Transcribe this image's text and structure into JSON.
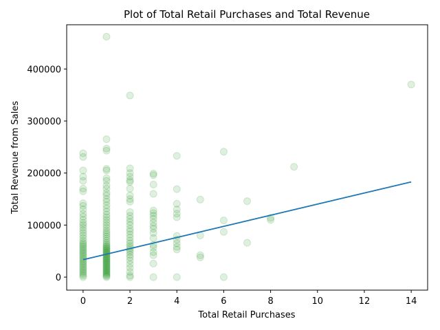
{
  "chart_data": {
    "type": "scatter",
    "title": "Plot of Total Retail Purchases and Total Revenue",
    "xlabel": "Total Retail Purchases",
    "ylabel": "Total Revenue from Sales",
    "xlim": [
      -0.7,
      14.7
    ],
    "ylim": [
      -25000,
      485000
    ],
    "x_ticks": [
      0,
      2,
      4,
      6,
      8,
      10,
      12,
      14
    ],
    "y_ticks": [
      0,
      100000,
      200000,
      300000,
      400000
    ],
    "grid": false,
    "legend": "none",
    "point_color": "#008000",
    "point_alpha": 0.12,
    "line_color": "#1f77b4",
    "points": [
      [
        0,
        0
      ],
      [
        0,
        3000
      ],
      [
        0,
        6000
      ],
      [
        0,
        9000
      ],
      [
        0,
        12000
      ],
      [
        0,
        15000
      ],
      [
        0,
        18000
      ],
      [
        0,
        21000
      ],
      [
        0,
        24000
      ],
      [
        0,
        27000
      ],
      [
        0,
        30000
      ],
      [
        0,
        33000
      ],
      [
        0,
        36000
      ],
      [
        0,
        39000
      ],
      [
        0,
        42000
      ],
      [
        0,
        45000
      ],
      [
        0,
        48000
      ],
      [
        0,
        51000
      ],
      [
        0,
        54000
      ],
      [
        0,
        57000
      ],
      [
        0,
        60000
      ],
      [
        0,
        63000
      ],
      [
        0,
        66000
      ],
      [
        0,
        70000
      ],
      [
        0,
        75000
      ],
      [
        0,
        80000
      ],
      [
        0,
        85000
      ],
      [
        0,
        90000
      ],
      [
        0,
        95000
      ],
      [
        0,
        100000
      ],
      [
        0,
        104000
      ],
      [
        0,
        110000
      ],
      [
        0,
        116000
      ],
      [
        0,
        122000
      ],
      [
        0,
        130000
      ],
      [
        0,
        137000
      ],
      [
        0,
        142000
      ],
      [
        0,
        165000
      ],
      [
        0,
        170000
      ],
      [
        0,
        185000
      ],
      [
        0,
        193000
      ],
      [
        0,
        205000
      ],
      [
        0,
        231000
      ],
      [
        0,
        238000
      ],
      [
        1,
        0
      ],
      [
        1,
        2000
      ],
      [
        1,
        4000
      ],
      [
        1,
        6000
      ],
      [
        1,
        8000
      ],
      [
        1,
        10000
      ],
      [
        1,
        12000
      ],
      [
        1,
        14000
      ],
      [
        1,
        16000
      ],
      [
        1,
        18000
      ],
      [
        1,
        20000
      ],
      [
        1,
        22000
      ],
      [
        1,
        24000
      ],
      [
        1,
        26000
      ],
      [
        1,
        28000
      ],
      [
        1,
        30000
      ],
      [
        1,
        32000
      ],
      [
        1,
        34000
      ],
      [
        1,
        36000
      ],
      [
        1,
        38000
      ],
      [
        1,
        40000
      ],
      [
        1,
        42000
      ],
      [
        1,
        44000
      ],
      [
        1,
        46000
      ],
      [
        1,
        48000
      ],
      [
        1,
        50000
      ],
      [
        1,
        52000
      ],
      [
        1,
        54000
      ],
      [
        1,
        56000
      ],
      [
        1,
        58000
      ],
      [
        1,
        60000
      ],
      [
        1,
        63000
      ],
      [
        1,
        66000
      ],
      [
        1,
        70000
      ],
      [
        1,
        74000
      ],
      [
        1,
        78000
      ],
      [
        1,
        82000
      ],
      [
        1,
        86000
      ],
      [
        1,
        90000
      ],
      [
        1,
        95000
      ],
      [
        1,
        100000
      ],
      [
        1,
        105000
      ],
      [
        1,
        110000
      ],
      [
        1,
        115000
      ],
      [
        1,
        120000
      ],
      [
        1,
        126000
      ],
      [
        1,
        132000
      ],
      [
        1,
        138000
      ],
      [
        1,
        145000
      ],
      [
        1,
        150000
      ],
      [
        1,
        157000
      ],
      [
        1,
        162000
      ],
      [
        1,
        170000
      ],
      [
        1,
        176000
      ],
      [
        1,
        185000
      ],
      [
        1,
        190000
      ],
      [
        1,
        205000
      ],
      [
        1,
        208000
      ],
      [
        1,
        243000
      ],
      [
        1,
        247000
      ],
      [
        1,
        265000
      ],
      [
        1,
        462000
      ],
      [
        2,
        0
      ],
      [
        2,
        3000
      ],
      [
        2,
        10000
      ],
      [
        2,
        18000
      ],
      [
        2,
        25000
      ],
      [
        2,
        32000
      ],
      [
        2,
        38000
      ],
      [
        2,
        43000
      ],
      [
        2,
        48000
      ],
      [
        2,
        52000
      ],
      [
        2,
        56000
      ],
      [
        2,
        60000
      ],
      [
        2,
        65000
      ],
      [
        2,
        70000
      ],
      [
        2,
        76000
      ],
      [
        2,
        82000
      ],
      [
        2,
        88000
      ],
      [
        2,
        93000
      ],
      [
        2,
        100000
      ],
      [
        2,
        106000
      ],
      [
        2,
        112000
      ],
      [
        2,
        118000
      ],
      [
        2,
        125000
      ],
      [
        2,
        145000
      ],
      [
        2,
        150000
      ],
      [
        2,
        157000
      ],
      [
        2,
        170000
      ],
      [
        2,
        183000
      ],
      [
        2,
        186000
      ],
      [
        2,
        193000
      ],
      [
        2,
        200000
      ],
      [
        2,
        209000
      ],
      [
        2,
        349000
      ],
      [
        3,
        0
      ],
      [
        3,
        26000
      ],
      [
        3,
        42000
      ],
      [
        3,
        48000
      ],
      [
        3,
        57000
      ],
      [
        3,
        62000
      ],
      [
        3,
        75000
      ],
      [
        3,
        85000
      ],
      [
        3,
        93000
      ],
      [
        3,
        98000
      ],
      [
        3,
        105000
      ],
      [
        3,
        112000
      ],
      [
        3,
        118000
      ],
      [
        3,
        123000
      ],
      [
        3,
        128000
      ],
      [
        3,
        160000
      ],
      [
        3,
        178000
      ],
      [
        3,
        196000
      ],
      [
        3,
        199000
      ],
      [
        4,
        0
      ],
      [
        4,
        53000
      ],
      [
        4,
        58000
      ],
      [
        4,
        65000
      ],
      [
        4,
        72000
      ],
      [
        4,
        79000
      ],
      [
        4,
        115000
      ],
      [
        4,
        122000
      ],
      [
        4,
        130000
      ],
      [
        4,
        141000
      ],
      [
        4,
        169000
      ],
      [
        4,
        233000
      ],
      [
        5,
        38000
      ],
      [
        5,
        42000
      ],
      [
        5,
        80000
      ],
      [
        5,
        149000
      ],
      [
        6,
        0
      ],
      [
        6,
        87000
      ],
      [
        6,
        109000
      ],
      [
        6,
        241000
      ],
      [
        7,
        66000
      ],
      [
        7,
        146000
      ],
      [
        8,
        110000
      ],
      [
        8,
        114000
      ],
      [
        9,
        212000
      ],
      [
        14,
        370000
      ]
    ],
    "fit_line": {
      "x": [
        0,
        14
      ],
      "y": [
        33500,
        183000
      ]
    }
  }
}
